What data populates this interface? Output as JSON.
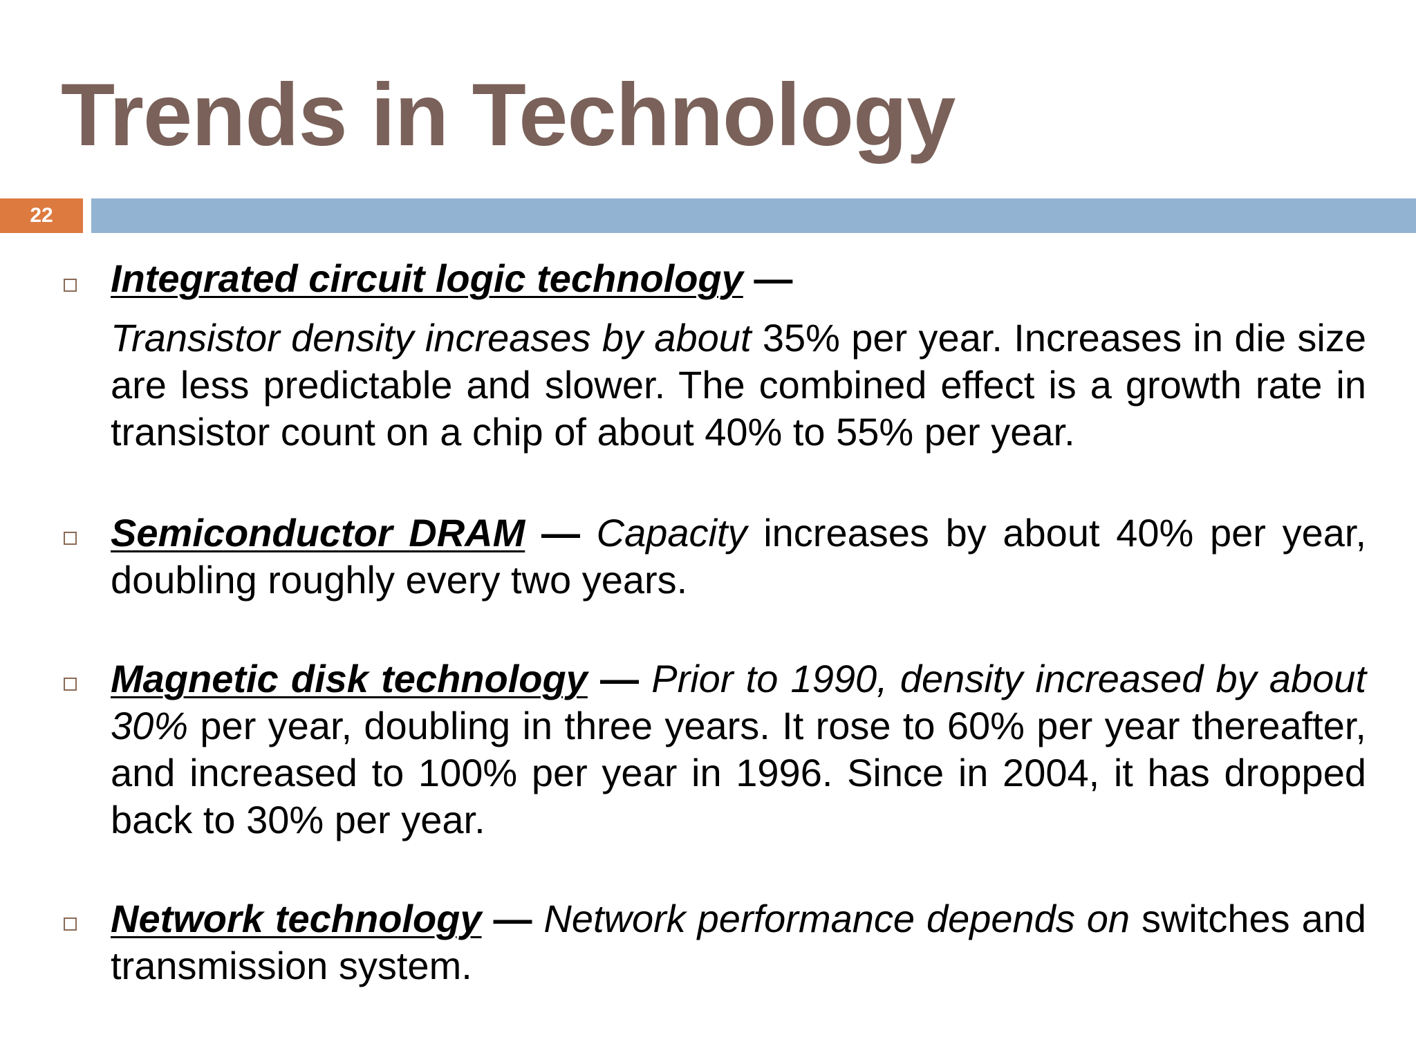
{
  "slide": {
    "title": "Trends in Technology",
    "number": "22",
    "colors": {
      "title": "#7a6159",
      "number_box": "#dd7a40",
      "header_bar": "#93b3d2",
      "bullet_border": "#8a6a55"
    }
  },
  "bullets": [
    {
      "term": "Integrated circuit logic technology",
      "dash": "—",
      "body_italic": "Transistor density increases by about",
      "body_rest": " 35% per year. Increases in die size are less predictable and slower. The combined effect is a growth rate in transistor count on a chip of about 40% to 55% per year."
    },
    {
      "term": "Semiconductor DRAM",
      "dash": "—",
      "lead_italic": "Capacity",
      "rest": " increases by about 40% per year, doubling roughly every two years."
    },
    {
      "term": "Magnetic disk technology",
      "dash": "—",
      "lead_italic": "Prior to 1990, density increased by about 30%",
      "rest": " per year, doubling in three years. It rose to 60% per year thereafter, and increased to 100% per year in 1996. Since in 2004, it has dropped back to 30% per year."
    },
    {
      "term": "Network technology",
      "dash": "—",
      "lead_italic": "Network performance depends on",
      "rest": " switches and transmission system."
    }
  ]
}
